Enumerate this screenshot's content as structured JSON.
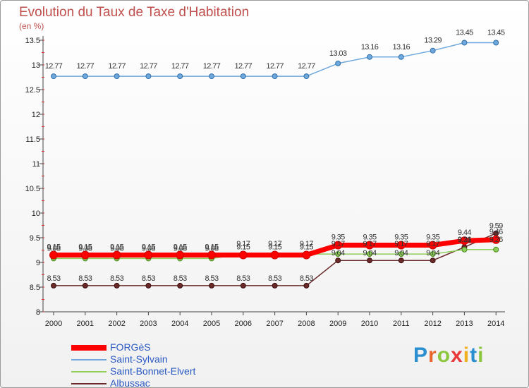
{
  "title": "Evolution du Taux de Taxe d'Habitation",
  "subtitle": "(en %)",
  "logo": {
    "text": "Proxiti"
  },
  "chart_data": {
    "type": "line",
    "x": [
      2000,
      2001,
      2002,
      2003,
      2004,
      2005,
      2006,
      2007,
      2008,
      2009,
      2010,
      2011,
      2012,
      2013,
      2014
    ],
    "ylim": [
      8,
      13.5
    ],
    "yticks": [
      8,
      8.5,
      9,
      9.5,
      10,
      10.5,
      11,
      11.5,
      12,
      12.5,
      13,
      13.5
    ],
    "grid": false,
    "legend_position": "bottom-left",
    "series": [
      {
        "name": "FORGèS",
        "color": "#ff0000",
        "values": [
          9.15,
          9.15,
          9.15,
          9.15,
          9.15,
          9.15,
          9.15,
          9.15,
          9.15,
          9.35,
          9.35,
          9.35,
          9.35,
          9.44,
          9.46
        ]
      },
      {
        "name": "Saint-Sylvain",
        "color": "#6fa8dc",
        "values": [
          12.77,
          12.77,
          12.77,
          12.77,
          12.77,
          12.77,
          12.77,
          12.77,
          12.77,
          13.03,
          13.16,
          13.16,
          13.29,
          13.45,
          13.45
        ]
      },
      {
        "name": "Saint-Bonnet-Elvert",
        "color": "#8fd05a",
        "values": [
          9.08,
          9.08,
          9.08,
          9.08,
          9.08,
          9.08,
          9.17,
          9.17,
          9.17,
          9.17,
          9.17,
          9.17,
          9.17,
          9.26,
          9.26
        ]
      },
      {
        "name": "Albussac",
        "color": "#6b2a2a",
        "values": [
          8.53,
          8.53,
          8.53,
          8.53,
          8.53,
          8.53,
          8.53,
          8.53,
          8.53,
          9.04,
          9.04,
          9.04,
          9.04,
          9.31,
          9.59
        ]
      }
    ]
  }
}
